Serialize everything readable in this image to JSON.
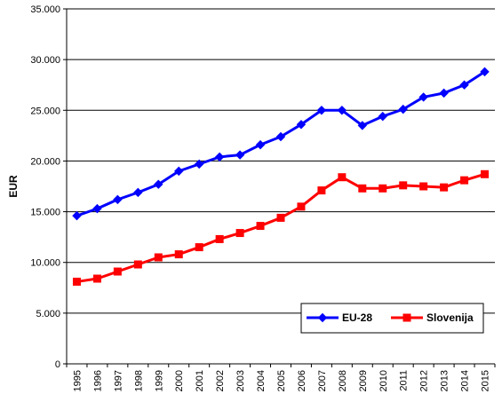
{
  "chart_data": {
    "type": "line",
    "title": "",
    "xlabel": "",
    "ylabel": "EUR",
    "ylim": [
      0,
      35000
    ],
    "y_ticks": [
      0,
      5000,
      10000,
      15000,
      20000,
      25000,
      30000,
      35000
    ],
    "y_tick_labels": [
      "0",
      "5.000",
      "10.000",
      "15.000",
      "20.000",
      "25.000",
      "30.000",
      "35.000"
    ],
    "grid": true,
    "legend_position": "bottom-right",
    "categories": [
      "1995",
      "1996",
      "1997",
      "1998",
      "1999",
      "2000",
      "2001",
      "2002",
      "2003",
      "2004",
      "2005",
      "2006",
      "2007",
      "2008",
      "2009",
      "2010",
      "2011",
      "2012",
      "2013",
      "2014",
      "2015"
    ],
    "series": [
      {
        "name": "EU-28",
        "color": "#0000ff",
        "marker": "diamond",
        "values": [
          14600,
          15300,
          16200,
          16900,
          17700,
          19000,
          19700,
          20400,
          20600,
          21600,
          22400,
          23600,
          25000,
          25000,
          23500,
          24400,
          25100,
          26300,
          26700,
          27500,
          28800
        ]
      },
      {
        "name": "Slovenija",
        "color": "#ff0000",
        "marker": "square",
        "values": [
          8100,
          8400,
          9100,
          9800,
          10500,
          10800,
          11500,
          12300,
          12900,
          13600,
          14400,
          15500,
          17100,
          18400,
          17300,
          17300,
          17600,
          17500,
          17400,
          18100,
          18700
        ]
      }
    ]
  }
}
